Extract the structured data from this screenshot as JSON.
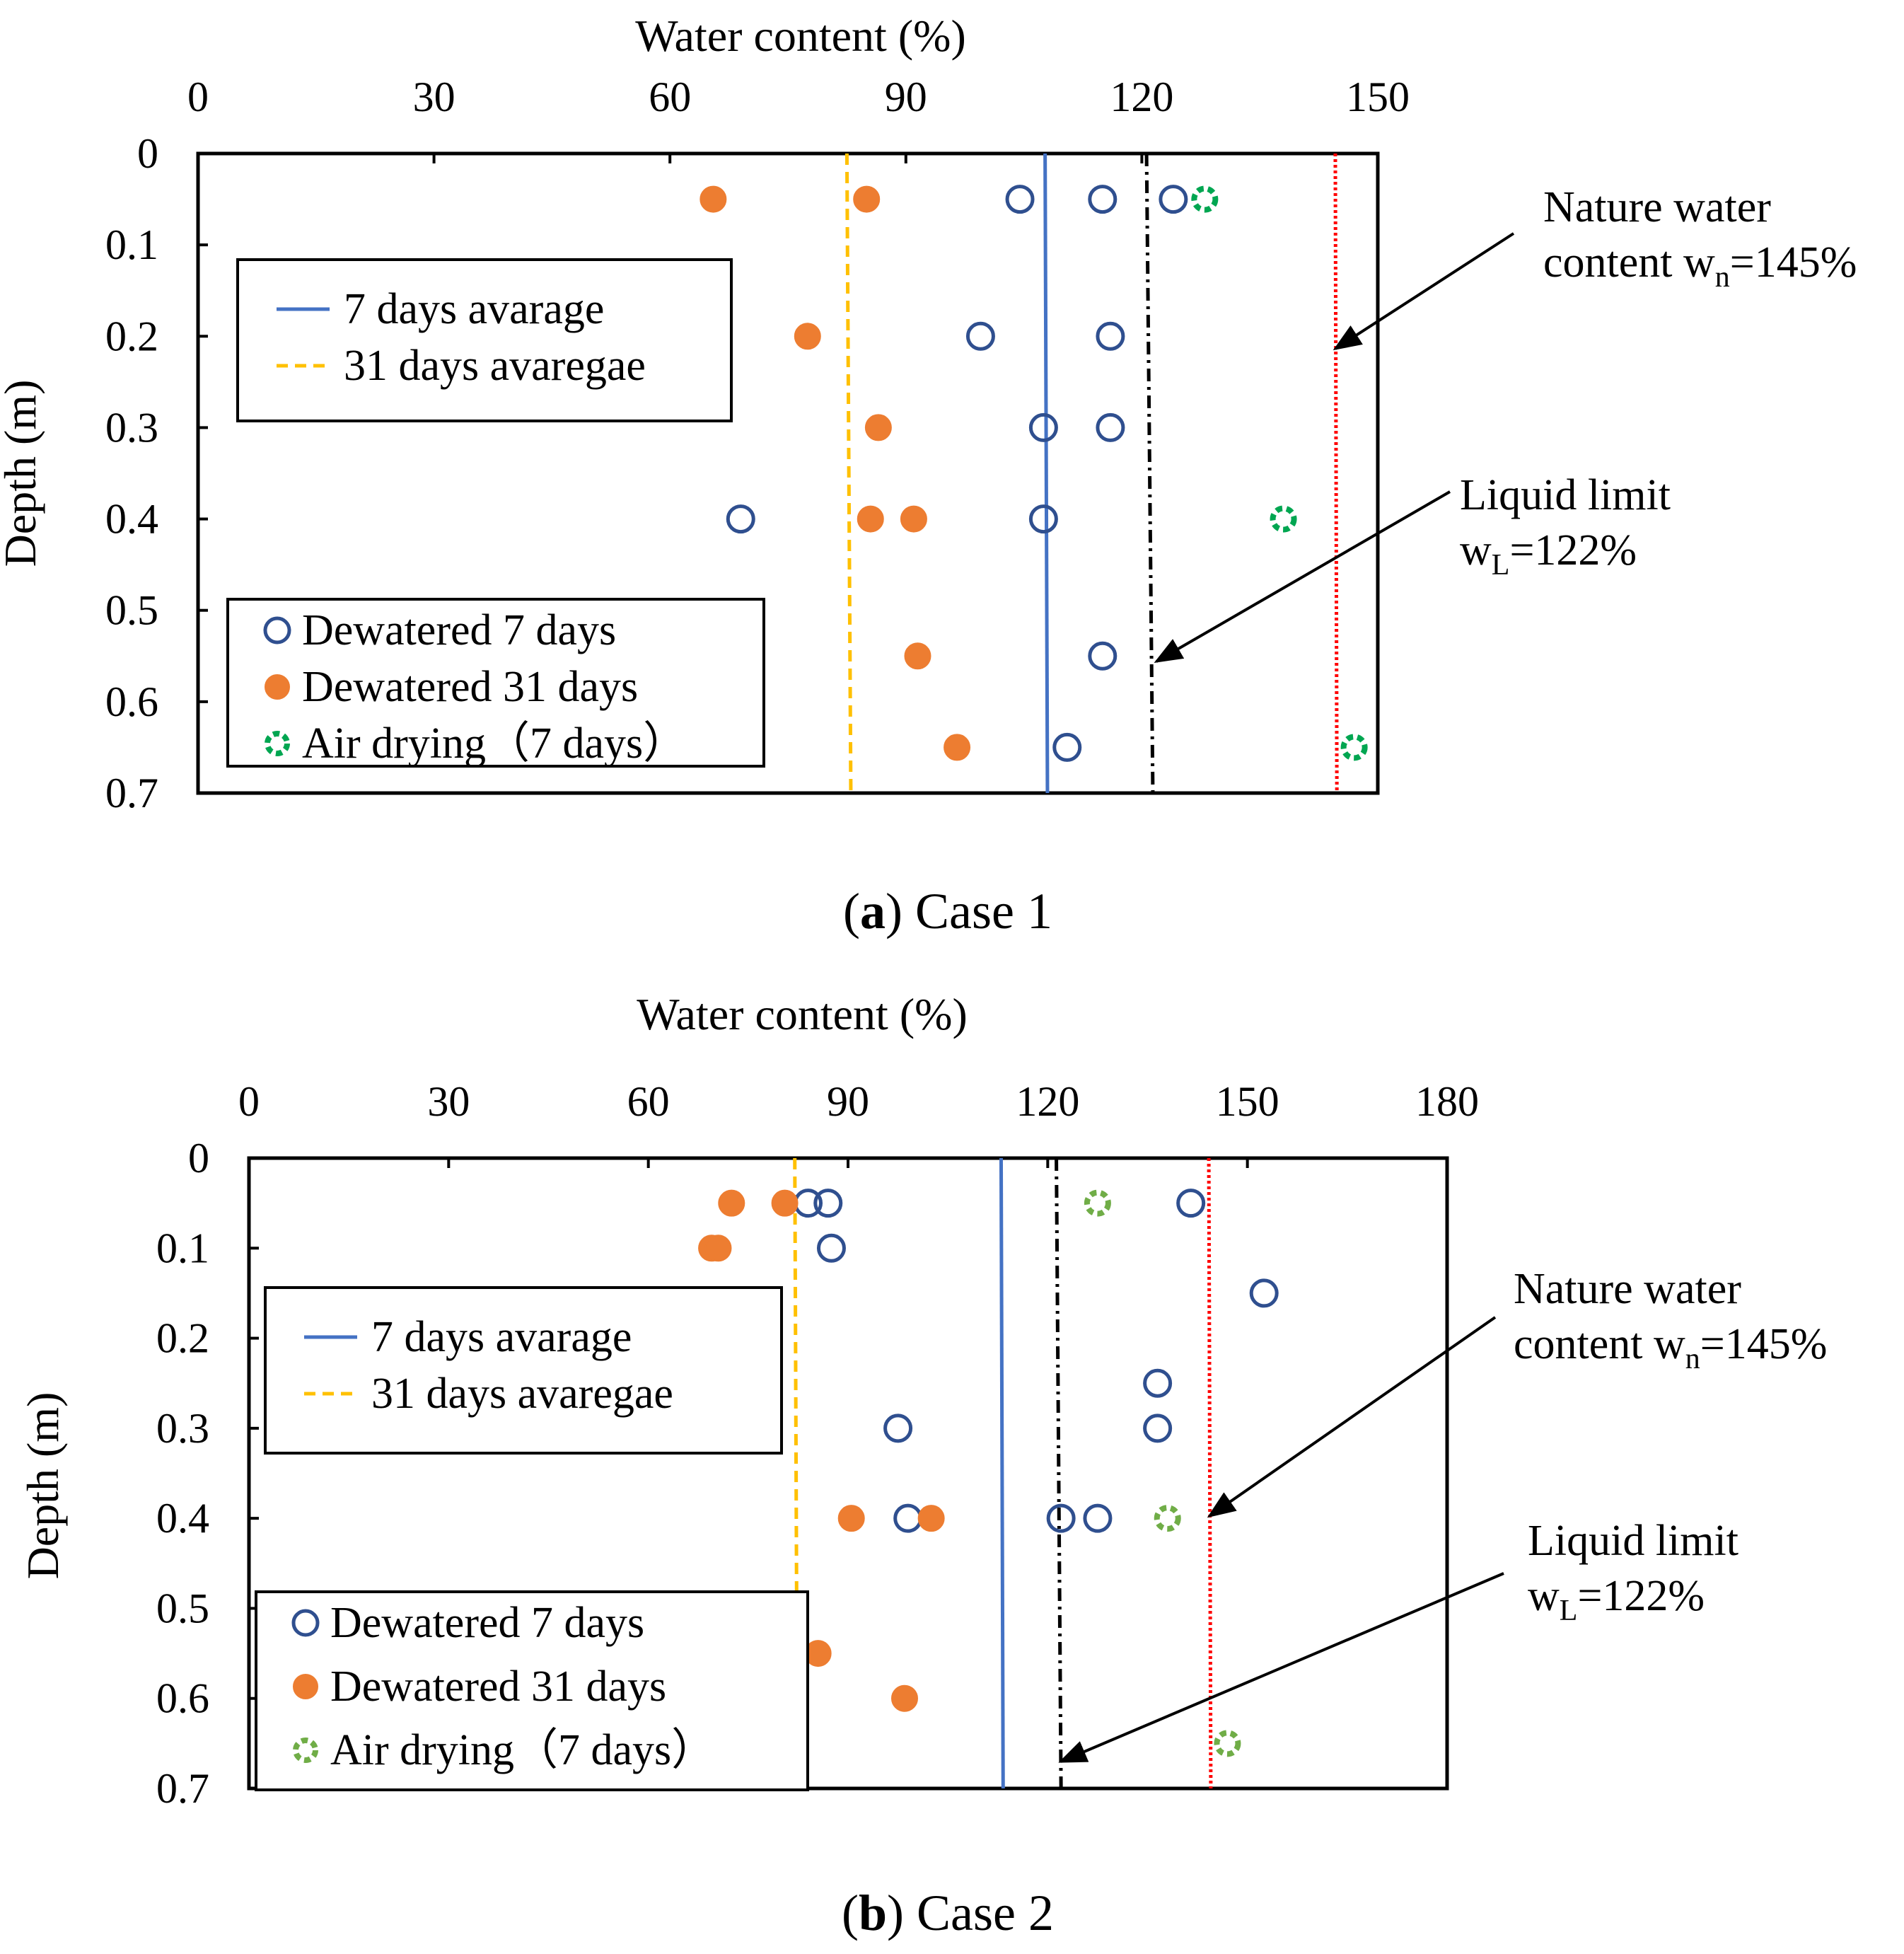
{
  "chart_data": [
    {
      "type": "scatter",
      "panel": "a",
      "caption_letter": "a",
      "caption_text": " Case 1",
      "xlabel": "Water content (%)",
      "ylabel": "Depth (m)",
      "xlim": [
        0,
        150
      ],
      "ylim": [
        0,
        0.7
      ],
      "x_ticks": [
        0,
        30,
        60,
        90,
        120,
        150
      ],
      "y_ticks": [
        0,
        0.1,
        0.2,
        0.3,
        0.4,
        0.5,
        0.6,
        0.7
      ],
      "y_tick_labels": [
        "0",
        "0.1",
        "0.2",
        "0.3",
        "0.4",
        "0.5",
        "0.6",
        "0.7"
      ],
      "series": [
        {
          "name": "Dewatered 7 days",
          "marker": "open-circle",
          "color": "#2f4f8f",
          "points": [
            {
              "x": 104.5,
              "y": 0.05
            },
            {
              "x": 115,
              "y": 0.05
            },
            {
              "x": 124,
              "y": 0.05
            },
            {
              "x": 99.5,
              "y": 0.2
            },
            {
              "x": 116,
              "y": 0.2
            },
            {
              "x": 107.5,
              "y": 0.3
            },
            {
              "x": 116,
              "y": 0.3
            },
            {
              "x": 69,
              "y": 0.4
            },
            {
              "x": 107.5,
              "y": 0.4
            },
            {
              "x": 115,
              "y": 0.55
            },
            {
              "x": 110.5,
              "y": 0.65
            }
          ]
        },
        {
          "name": "Dewatered 31 days",
          "marker": "filled-circle",
          "color": "#ed7d31",
          "points": [
            {
              "x": 65.5,
              "y": 0.05
            },
            {
              "x": 85,
              "y": 0.05
            },
            {
              "x": 77.5,
              "y": 0.2
            },
            {
              "x": 86.5,
              "y": 0.3
            },
            {
              "x": 85.5,
              "y": 0.4
            },
            {
              "x": 91,
              "y": 0.4
            },
            {
              "x": 91.5,
              "y": 0.55
            },
            {
              "x": 96.5,
              "y": 0.65
            }
          ]
        },
        {
          "name": "Air drying（7 days）",
          "marker": "dashed-circle",
          "color": "#00a651",
          "points": [
            {
              "x": 128,
              "y": 0.05
            },
            {
              "x": 138,
              "y": 0.4
            },
            {
              "x": 147,
              "y": 0.65
            }
          ]
        }
      ],
      "lines": [
        {
          "name": "7 days avarage",
          "style": "solid",
          "color": "#4472c4",
          "x_top": 107.7,
          "x_bottom": 108.0
        },
        {
          "name": "31 days avaregae",
          "style": "dashed",
          "color": "#ffc000",
          "x_top": 82.5,
          "x_bottom": 83.0
        },
        {
          "name": "Liquid limit",
          "style": "dashdot",
          "color": "#000000",
          "x_top": 120.6,
          "x_bottom": 121.4
        },
        {
          "name": "Nature water content",
          "style": "dotted",
          "color": "#ff0000",
          "x_top": 144.6,
          "x_bottom": 144.8
        }
      ],
      "legend_lines": [
        "7 days avarage",
        "31 days avaregae"
      ],
      "legend_markers": [
        "Dewatered 7 days",
        "Dewatered 31 days",
        "Air drying（7 days）"
      ],
      "annotations": {
        "nature": {
          "line1": "Nature water",
          "line2_pre": "content w",
          "line2_sub": "n",
          "line2_post": "=145%"
        },
        "liquid": {
          "line1": "Liquid limit",
          "line2_pre": "w",
          "line2_sub": "L",
          "line2_post": "=122%"
        }
      }
    },
    {
      "type": "scatter",
      "panel": "b",
      "caption_letter": "b",
      "caption_text": " Case 2",
      "xlabel": "Water content (%)",
      "ylabel": "Depth (m)",
      "xlim": [
        0,
        180
      ],
      "ylim": [
        0,
        0.7
      ],
      "x_ticks": [
        0,
        30,
        60,
        90,
        120,
        150,
        180
      ],
      "y_ticks": [
        0,
        0.1,
        0.2,
        0.3,
        0.4,
        0.5,
        0.6,
        0.7
      ],
      "y_tick_labels": [
        "0",
        "0.1",
        "0.2",
        "0.3",
        "0.4",
        "0.5",
        "0.6",
        "0.7"
      ],
      "series": [
        {
          "name": "Dewatered 7 days",
          "marker": "open-circle",
          "color": "#2f4f8f",
          "points": [
            {
              "x": 84,
              "y": 0.05
            },
            {
              "x": 87,
              "y": 0.05
            },
            {
              "x": 141.5,
              "y": 0.05
            },
            {
              "x": 87.5,
              "y": 0.1
            },
            {
              "x": 152.5,
              "y": 0.15
            },
            {
              "x": 136.5,
              "y": 0.25
            },
            {
              "x": 97.5,
              "y": 0.3
            },
            {
              "x": 136.5,
              "y": 0.3
            },
            {
              "x": 99,
              "y": 0.4
            },
            {
              "x": 122,
              "y": 0.4
            },
            {
              "x": 127.5,
              "y": 0.4
            }
          ]
        },
        {
          "name": "Dewatered 31 days",
          "marker": "filled-circle",
          "color": "#ed7d31",
          "points": [
            {
              "x": 72.5,
              "y": 0.05
            },
            {
              "x": 80.5,
              "y": 0.05
            },
            {
              "x": 69.5,
              "y": 0.1
            },
            {
              "x": 70.5,
              "y": 0.1
            },
            {
              "x": 90.5,
              "y": 0.4
            },
            {
              "x": 102.5,
              "y": 0.4
            },
            {
              "x": 85.5,
              "y": 0.55
            },
            {
              "x": 98.5,
              "y": 0.6
            }
          ]
        },
        {
          "name": "Air drying（7 days）",
          "marker": "dashed-circle",
          "color": "#70ad47",
          "points": [
            {
              "x": 127.5,
              "y": 0.05
            },
            {
              "x": 138,
              "y": 0.4
            },
            {
              "x": 147,
              "y": 0.65
            }
          ]
        }
      ],
      "lines": [
        {
          "name": "7 days avarage",
          "style": "solid",
          "color": "#4472c4",
          "x_top": 113.0,
          "x_bottom": 113.3
        },
        {
          "name": "31 days avaregae",
          "style": "dashed",
          "color": "#ffc000",
          "x_top": 82.0,
          "x_bottom": 82.4
        },
        {
          "name": "Liquid limit",
          "style": "dashdot",
          "color": "#000000",
          "x_top": 121.3,
          "x_bottom": 122.0
        },
        {
          "name": "Nature water content",
          "style": "dotted",
          "color": "#ff0000",
          "x_top": 144.2,
          "x_bottom": 144.5
        }
      ],
      "legend_lines": [
        "7 days avarage",
        "31 days avaregae"
      ],
      "legend_markers": [
        "Dewatered 7 days",
        "Dewatered 31 days",
        "Air drying（7 days）"
      ],
      "annotations": {
        "nature": {
          "line1": "Nature water",
          "line2_pre": "content w",
          "line2_sub": "n",
          "line2_post": "=145%"
        },
        "liquid": {
          "line1": "Liquid limit",
          "line2_pre": "w",
          "line2_sub": "L",
          "line2_post": "=122%"
        }
      }
    }
  ]
}
